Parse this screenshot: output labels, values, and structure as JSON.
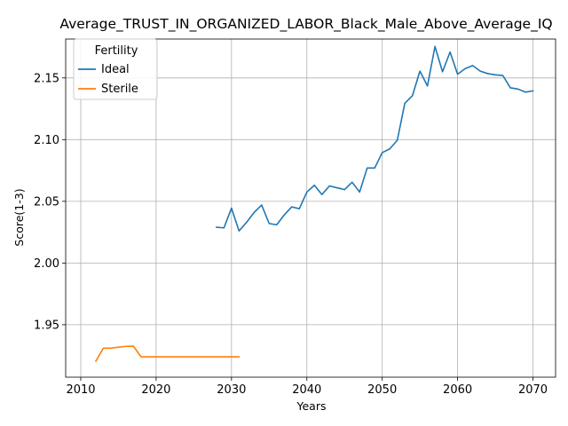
{
  "chart_data": {
    "type": "line",
    "title": "Average_TRUST_IN_ORGANIZED_LABOR_Black_Male_Above_Average_IQ",
    "xlabel": "Years",
    "ylabel": "Score(1-3)",
    "xlim": [
      2008,
      2073
    ],
    "ylim": [
      1.9075,
      2.1815
    ],
    "xticks": [
      2010,
      2020,
      2030,
      2040,
      2050,
      2060,
      2070
    ],
    "yticks": [
      1.95,
      2.0,
      2.05,
      2.1,
      2.15
    ],
    "ytick_labels": [
      "1.95",
      "2.00",
      "2.05",
      "2.10",
      "2.15"
    ],
    "grid": true,
    "legend": {
      "title": "Fertility",
      "placement": "top-left"
    },
    "series": [
      {
        "name": "Ideal",
        "color": "#1f77b4",
        "x": [
          2028,
          2029,
          2030,
          2031,
          2032,
          2033,
          2034,
          2035,
          2036,
          2037,
          2038,
          2039,
          2040,
          2041,
          2042,
          2043,
          2044,
          2045,
          2046,
          2047,
          2048,
          2049,
          2050,
          2051,
          2052,
          2053,
          2054,
          2055,
          2056,
          2057,
          2058,
          2059,
          2060,
          2061,
          2062,
          2063,
          2064,
          2065,
          2066,
          2067,
          2068,
          2069,
          2070
        ],
        "y": [
          2.029,
          2.0285,
          2.0445,
          2.026,
          2.033,
          2.041,
          2.047,
          2.032,
          2.031,
          2.039,
          2.0455,
          2.044,
          2.0575,
          2.063,
          2.0555,
          2.0625,
          2.061,
          2.0595,
          2.0655,
          2.0575,
          2.077,
          2.077,
          2.0895,
          2.0925,
          2.0995,
          2.1295,
          2.1355,
          2.1555,
          2.1435,
          2.1755,
          2.155,
          2.171,
          2.153,
          2.1575,
          2.16,
          2.1555,
          2.1535,
          2.1525,
          2.152,
          2.142,
          2.141,
          2.1385,
          2.1395
        ]
      },
      {
        "name": "Sterile",
        "color": "#ff7f0e",
        "x": [
          2012,
          2013,
          2014,
          2015,
          2016,
          2017,
          2018,
          2019,
          2020,
          2021,
          2022,
          2023,
          2024,
          2025,
          2026,
          2027,
          2028,
          2029,
          2030,
          2031
        ],
        "y": [
          1.9205,
          1.931,
          1.931,
          1.9318,
          1.9325,
          1.9326,
          1.924,
          1.924,
          1.924,
          1.924,
          1.924,
          1.924,
          1.924,
          1.924,
          1.924,
          1.924,
          1.924,
          1.924,
          1.924,
          1.924
        ]
      }
    ]
  }
}
